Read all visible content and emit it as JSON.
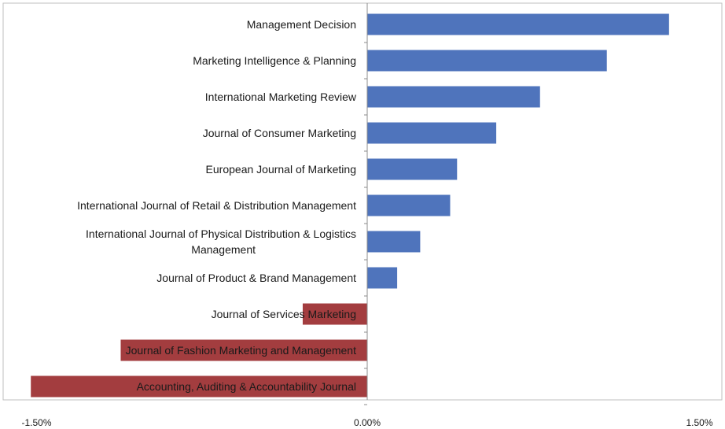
{
  "chart_data": {
    "type": "bar",
    "orientation": "horizontal",
    "categories": [
      "Management Decision",
      "Marketing Intelligence & Planning",
      "International Marketing Review",
      "Journal of Consumer Marketing",
      "European Journal of Marketing",
      "International Journal of Retail & Distribution Management",
      "International Journal of Physical Distribution & Logistics Management",
      "Journal of Product & Brand Management",
      "Journal of Services Marketing",
      "Journal of Fashion Marketing and Management",
      "Accounting, Auditing & Accountability Journal"
    ],
    "category_label_lines": [
      [
        "Management Decision"
      ],
      [
        "Marketing Intelligence & Planning"
      ],
      [
        "International Marketing Review"
      ],
      [
        "Journal of Consumer Marketing"
      ],
      [
        "European Journal of Marketing"
      ],
      [
        "International Journal of Retail & Distribution Management"
      ],
      [
        "International Journal of Physical Distribution & Logistics",
        "Management"
      ],
      [
        "Journal of Product & Brand Management"
      ],
      [
        "Journal of Services Marketing"
      ],
      [
        "Journal of Fashion Marketing and Management"
      ],
      [
        "Accounting, Auditing & Accountability Journal"
      ]
    ],
    "values": [
      1.31,
      1.04,
      0.75,
      0.56,
      0.39,
      0.36,
      0.23,
      0.13,
      -0.28,
      -1.07,
      -1.46
    ],
    "value_unit": "%",
    "xlim": [
      -1.5,
      1.5
    ],
    "x_ticks": [
      -1.5,
      0,
      1.5
    ],
    "x_tick_labels": [
      "-1.50%",
      "0.00%",
      "1.50%"
    ],
    "title": "",
    "xlabel": "",
    "ylabel": "",
    "grid": false,
    "legend": "none",
    "colors": {
      "positive": "#4f74bc",
      "negative": "#a33d3f",
      "axis": "#8c8c8c",
      "frame": "#bfbfbf"
    }
  }
}
